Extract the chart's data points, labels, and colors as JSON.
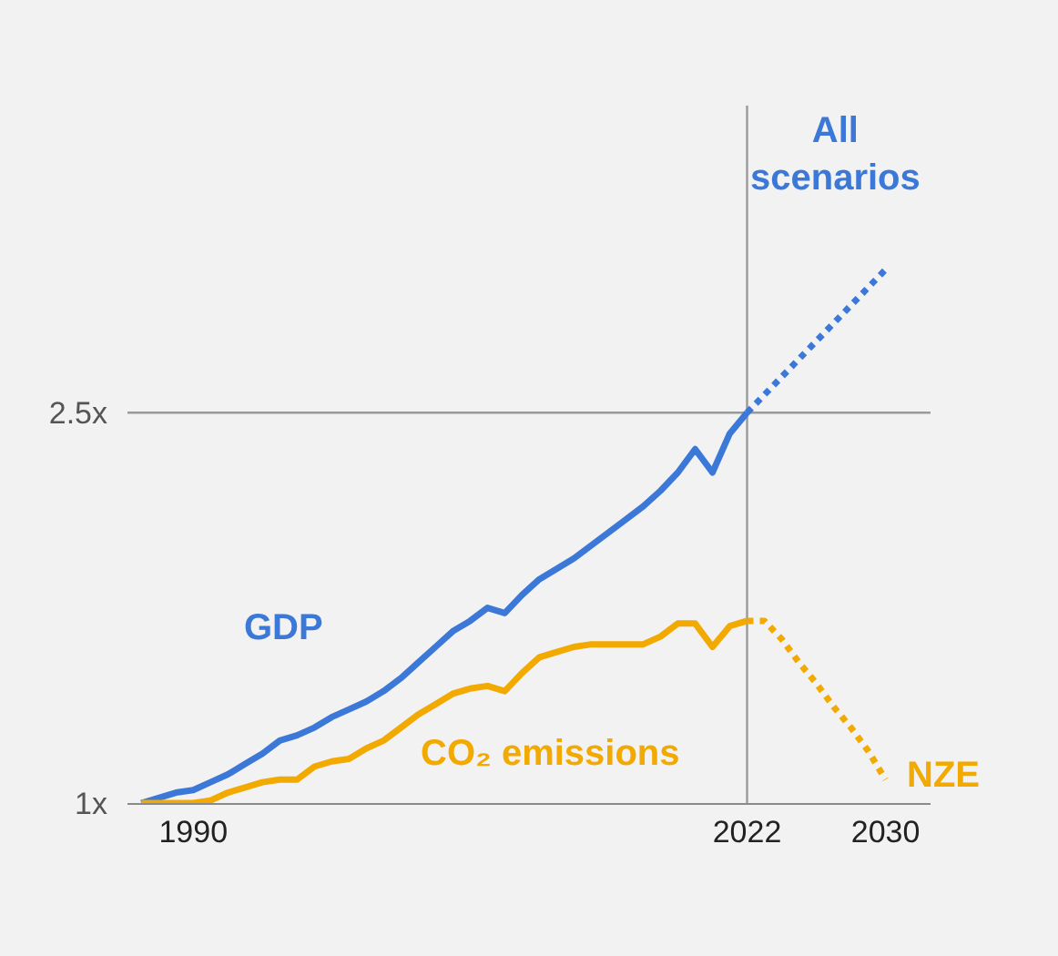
{
  "chart_data": {
    "type": "line",
    "xlim": [
      1986.2,
      2032.6
    ],
    "ylim": [
      1,
      3.68
    ],
    "xticks": [
      1990,
      2022,
      2030
    ],
    "yticks": [
      {
        "value": 1,
        "label": "1x"
      },
      {
        "value": 2.5,
        "label": "2.5x"
      }
    ],
    "legend": false,
    "marker": "none",
    "ref_lines": [
      {
        "axis": "x",
        "value": 2022,
        "label": null,
        "color": "#9a9a9a"
      },
      {
        "axis": "y",
        "value": 2.5,
        "label": null,
        "color": "#9a9a9a"
      }
    ],
    "series": [
      {
        "name": "GDP",
        "color": "#3b78d8",
        "line_style": "solid",
        "x": [
          1987,
          1988,
          1989,
          1990,
          1991,
          1992,
          1993,
          1994,
          1995,
          1996,
          1997,
          1998,
          1999,
          2000,
          2001,
          2002,
          2003,
          2004,
          2005,
          2006,
          2007,
          2008,
          2009,
          2010,
          2011,
          2012,
          2013,
          2014,
          2015,
          2016,
          2017,
          2018,
          2019,
          2020,
          2021,
          2022
        ],
        "values": [
          1.0,
          1.02,
          1.04,
          1.05,
          1.08,
          1.11,
          1.15,
          1.19,
          1.24,
          1.26,
          1.29,
          1.33,
          1.36,
          1.39,
          1.43,
          1.48,
          1.54,
          1.6,
          1.66,
          1.7,
          1.75,
          1.73,
          1.8,
          1.86,
          1.9,
          1.94,
          1.99,
          2.04,
          2.09,
          2.14,
          2.2,
          2.27,
          2.36,
          2.27,
          2.42,
          2.5
        ]
      },
      {
        "name": "CO₂ emissions",
        "color": "#f2a900",
        "line_style": "solid",
        "x": [
          1987,
          1988,
          1989,
          1990,
          1991,
          1992,
          1993,
          1994,
          1995,
          1996,
          1997,
          1998,
          1999,
          2000,
          2001,
          2002,
          2003,
          2004,
          2005,
          2006,
          2007,
          2008,
          2009,
          2010,
          2011,
          2012,
          2013,
          2014,
          2015,
          2016,
          2017,
          2018,
          2019,
          2020,
          2021,
          2022
        ],
        "values": [
          1.0,
          1.0,
          1.0,
          1.0,
          1.01,
          1.04,
          1.06,
          1.08,
          1.09,
          1.09,
          1.14,
          1.16,
          1.17,
          1.21,
          1.24,
          1.29,
          1.34,
          1.38,
          1.42,
          1.44,
          1.45,
          1.43,
          1.5,
          1.56,
          1.58,
          1.6,
          1.61,
          1.61,
          1.61,
          1.61,
          1.64,
          1.69,
          1.69,
          1.6,
          1.68,
          1.7
        ]
      },
      {
        "name": "All scenarios",
        "color": "#3b78d8",
        "line_style": "dotted",
        "x": [
          2022,
          2030
        ],
        "values": [
          2.5,
          3.05
        ]
      },
      {
        "name": "NZE",
        "color": "#f2a900",
        "line_style": "dotted",
        "x": [
          2022,
          2023,
          2024,
          2025,
          2026,
          2027,
          2028,
          2029,
          2030
        ],
        "values": [
          1.7,
          1.7,
          1.63,
          1.54,
          1.46,
          1.37,
          1.29,
          1.2,
          1.09
        ]
      }
    ]
  }
}
